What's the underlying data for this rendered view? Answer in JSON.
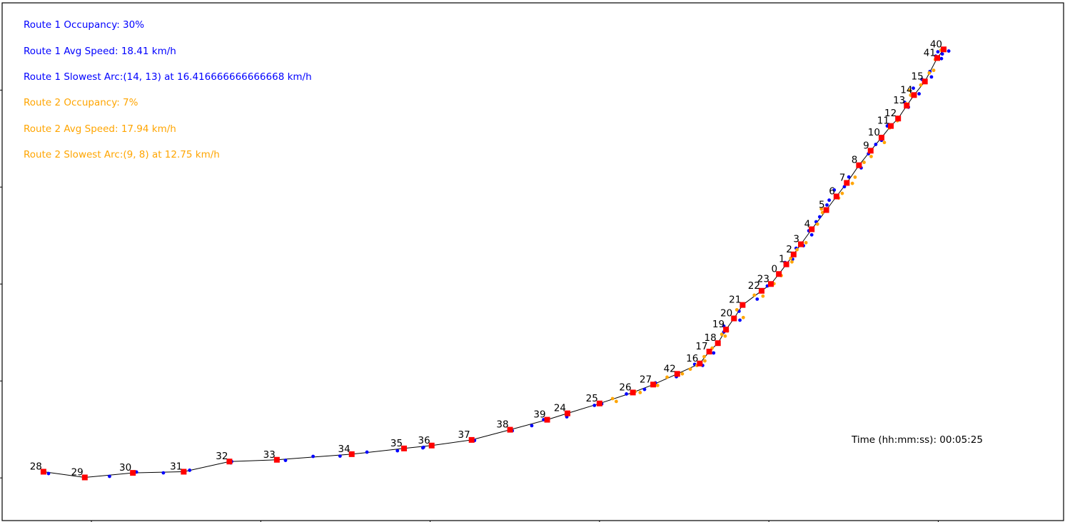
{
  "overlay": {
    "route1": {
      "color": "#0000ff",
      "occupancy": "Route 1 Occupancy: 30%",
      "avg_speed": "Route 1 Avg Speed: 18.41 km/h",
      "slowest_arc": "Route 1 Slowest Arc:(14, 13) at 16.416666666666668 km/h"
    },
    "route2": {
      "color": "#ffa500",
      "occupancy": "Route 2 Occupancy: 7%",
      "avg_speed": "Route 2 Avg Speed: 17.94 km/h",
      "slowest_arc": "Route 2 Slowest Arc:(9, 8) at 12.75 km/h"
    },
    "time": "Time (hh:mm:ss): 00:05:25"
  },
  "chart_data": {
    "type": "scatter",
    "title": "",
    "xlabel": "",
    "ylabel": "",
    "xlim": [
      -0.527,
      5.74
    ],
    "ylim": [
      -0.44,
      4.9
    ],
    "x_ticks": [
      0.0,
      1.0,
      2.0,
      3.0,
      4.0,
      5.0
    ],
    "y_ticks": [
      0.0,
      1.0,
      2.0,
      3.0,
      4.0
    ],
    "grid": false,
    "legend": "none",
    "route_color": "#000000",
    "stop_color": "#ff0000",
    "stops": [
      {
        "id": "28",
        "x": -0.283,
        "y": 0.064
      },
      {
        "id": "29",
        "x": -0.039,
        "y": 0.005
      },
      {
        "id": "30",
        "x": 0.245,
        "y": 0.052
      },
      {
        "id": "31",
        "x": 0.545,
        "y": 0.064
      },
      {
        "id": "32",
        "x": 0.815,
        "y": 0.169
      },
      {
        "id": "33",
        "x": 1.095,
        "y": 0.187
      },
      {
        "id": "34",
        "x": 1.537,
        "y": 0.245
      },
      {
        "id": "35",
        "x": 1.846,
        "y": 0.304
      },
      {
        "id": "36",
        "x": 2.009,
        "y": 0.334
      },
      {
        "id": "37",
        "x": 2.245,
        "y": 0.392
      },
      {
        "id": "38",
        "x": 2.472,
        "y": 0.497
      },
      {
        "id": "39",
        "x": 2.691,
        "y": 0.6
      },
      {
        "id": "24",
        "x": 2.811,
        "y": 0.666
      },
      {
        "id": "25",
        "x": 3.0,
        "y": 0.768
      },
      {
        "id": "26",
        "x": 3.197,
        "y": 0.881
      },
      {
        "id": "27",
        "x": 3.317,
        "y": 0.963
      },
      {
        "id": "42",
        "x": 3.459,
        "y": 1.073
      },
      {
        "id": "16",
        "x": 3.592,
        "y": 1.18
      },
      {
        "id": "17",
        "x": 3.648,
        "y": 1.303
      },
      {
        "id": "18",
        "x": 3.699,
        "y": 1.39
      },
      {
        "id": "19",
        "x": 3.747,
        "y": 1.53
      },
      {
        "id": "20",
        "x": 3.794,
        "y": 1.645
      },
      {
        "id": "21",
        "x": 3.845,
        "y": 1.784
      },
      {
        "id": "22",
        "x": 3.957,
        "y": 1.93
      },
      {
        "id": "23",
        "x": 4.012,
        "y": 2.0
      },
      {
        "id": "0",
        "x": 4.059,
        "y": 2.103
      },
      {
        "id": "1",
        "x": 4.103,
        "y": 2.203
      },
      {
        "id": "2",
        "x": 4.146,
        "y": 2.305
      },
      {
        "id": "3",
        "x": 4.189,
        "y": 2.41
      },
      {
        "id": "4",
        "x": 4.253,
        "y": 2.565
      },
      {
        "id": "5",
        "x": 4.339,
        "y": 2.763
      },
      {
        "id": "6",
        "x": 4.399,
        "y": 2.903
      },
      {
        "id": "7",
        "x": 4.46,
        "y": 3.043
      },
      {
        "id": "8",
        "x": 4.532,
        "y": 3.225
      },
      {
        "id": "9",
        "x": 4.601,
        "y": 3.375
      },
      {
        "id": "10",
        "x": 4.665,
        "y": 3.51
      },
      {
        "id": "11",
        "x": 4.72,
        "y": 3.63
      },
      {
        "id": "12",
        "x": 4.763,
        "y": 3.707
      },
      {
        "id": "13",
        "x": 4.814,
        "y": 3.84
      },
      {
        "id": "14",
        "x": 4.857,
        "y": 3.949
      },
      {
        "id": "15",
        "x": 4.921,
        "y": 4.089
      },
      {
        "id": "41",
        "x": 4.994,
        "y": 4.331
      },
      {
        "id": "40",
        "x": 5.032,
        "y": 4.42
      }
    ],
    "series": [
      {
        "name": "",
        "color": "#0000ff",
        "points": [
          [
            -0.253,
            0.045
          ],
          [
            0.107,
            0.016
          ],
          [
            0.266,
            0.061
          ],
          [
            0.425,
            0.052
          ],
          [
            0.58,
            0.079
          ],
          [
            0.828,
            0.169
          ],
          [
            0.823,
            0.155
          ],
          [
            1.146,
            0.181
          ],
          [
            1.309,
            0.222
          ],
          [
            1.468,
            0.225
          ],
          [
            1.627,
            0.266
          ],
          [
            1.807,
            0.28
          ],
          [
            1.957,
            0.31
          ],
          [
            1.961,
            0.316
          ],
          [
            2.262,
            0.386
          ],
          [
            2.485,
            0.486
          ],
          [
            2.6,
            0.539
          ],
          [
            2.67,
            0.601
          ],
          [
            2.807,
            0.63
          ],
          [
            2.97,
            0.748
          ],
          [
            3.013,
            0.763
          ],
          [
            3.159,
            0.866
          ],
          [
            3.266,
            0.913
          ],
          [
            3.33,
            0.98
          ],
          [
            3.454,
            1.044
          ],
          [
            3.562,
            1.172
          ],
          [
            3.609,
            1.16
          ],
          [
            3.674,
            1.289
          ],
          [
            3.734,
            1.505
          ],
          [
            3.734,
            1.566
          ],
          [
            3.829,
            1.627
          ],
          [
            3.824,
            1.719
          ],
          [
            3.931,
            1.844
          ],
          [
            3.991,
            1.98
          ],
          [
            4.069,
            2.09
          ],
          [
            4.095,
            2.222
          ],
          [
            4.14,
            2.256
          ],
          [
            4.161,
            2.369
          ],
          [
            4.204,
            2.395
          ],
          [
            4.236,
            2.549
          ],
          [
            4.253,
            2.507
          ],
          [
            4.279,
            2.642
          ],
          [
            4.3,
            2.693
          ],
          [
            4.343,
            2.815
          ],
          [
            4.356,
            2.865
          ],
          [
            4.386,
            2.97
          ],
          [
            4.446,
            3.004
          ],
          [
            4.472,
            3.104
          ],
          [
            4.545,
            3.198
          ],
          [
            4.588,
            3.344
          ],
          [
            4.631,
            3.44
          ],
          [
            4.665,
            3.482
          ],
          [
            4.699,
            3.63
          ],
          [
            4.708,
            3.645
          ],
          [
            4.802,
            3.874
          ],
          [
            4.824,
            3.824
          ],
          [
            4.887,
            3.962
          ],
          [
            4.853,
            4.02
          ],
          [
            4.904,
            4.111
          ],
          [
            4.96,
            4.136
          ],
          [
            4.951,
            4.192
          ],
          [
            4.985,
            4.351
          ],
          [
            4.998,
            4.395
          ],
          [
            5.019,
            4.325
          ],
          [
            5.062,
            4.403
          ],
          [
            5.024,
            4.373
          ]
        ]
      },
      {
        "name": "",
        "color": "#ffa500",
        "points": [
          [
            3.077,
            0.818
          ],
          [
            3.099,
            0.789
          ],
          [
            3.21,
            0.89
          ],
          [
            3.24,
            0.881
          ],
          [
            3.343,
            0.954
          ],
          [
            3.399,
            1.039
          ],
          [
            3.489,
            1.074
          ],
          [
            3.536,
            1.122
          ],
          [
            3.575,
            1.16
          ],
          [
            3.622,
            1.207
          ],
          [
            3.618,
            1.251
          ],
          [
            3.665,
            1.339
          ],
          [
            3.742,
            1.463
          ],
          [
            3.722,
            1.481
          ],
          [
            3.755,
            1.516
          ],
          [
            3.849,
            1.654
          ],
          [
            3.811,
            1.734
          ],
          [
            3.914,
            1.885
          ],
          [
            3.965,
            1.875
          ],
          [
            4.03,
            2.003
          ],
          [
            4.073,
            2.087
          ],
          [
            4.136,
            2.228
          ],
          [
            4.129,
            2.265
          ],
          [
            4.166,
            2.354
          ],
          [
            4.219,
            2.426
          ],
          [
            4.287,
            2.618
          ],
          [
            4.317,
            2.737
          ],
          [
            4.31,
            2.774
          ],
          [
            4.412,
            2.887
          ],
          [
            4.433,
            2.935
          ],
          [
            4.493,
            3.038
          ],
          [
            4.509,
            3.102
          ],
          [
            4.562,
            3.255
          ],
          [
            4.604,
            3.315
          ],
          [
            4.682,
            3.46
          ],
          [
            4.712,
            3.61
          ],
          [
            4.759,
            3.684
          ],
          [
            4.811,
            3.86
          ],
          [
            4.837,
            3.948
          ],
          [
            4.832,
            3.998
          ],
          [
            4.897,
            4.053
          ],
          [
            4.947,
            4.177
          ],
          [
            4.973,
            4.204
          ],
          [
            4.982,
            4.316
          ],
          [
            5.016,
            4.412
          ]
        ]
      }
    ]
  }
}
